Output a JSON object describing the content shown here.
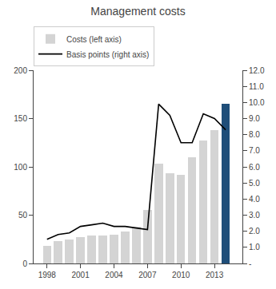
{
  "chart_data": {
    "type": "bar",
    "title": "Management costs",
    "x": [
      1998,
      1999,
      2000,
      2001,
      2002,
      2003,
      2004,
      2005,
      2006,
      2007,
      2008,
      2009,
      2010,
      2011,
      2012,
      2013,
      2014
    ],
    "xlim": [
      1996.8,
      2015.5
    ],
    "xticks": [
      1998,
      2001,
      2004,
      2007,
      2010,
      2013
    ],
    "ylim": [
      0,
      200
    ],
    "yticks": [
      0,
      50,
      100,
      150,
      200
    ],
    "y2lim": [
      0,
      12.0
    ],
    "y2ticks": [
      {
        "value": 0,
        "label": "-"
      },
      {
        "value": 1.0,
        "label": "1.0"
      },
      {
        "value": 2.0,
        "label": "2.0"
      },
      {
        "value": 3.0,
        "label": "3.0"
      },
      {
        "value": 4.0,
        "label": "4.0"
      },
      {
        "value": 5.0,
        "label": "5.0"
      },
      {
        "value": 6.0,
        "label": "6.0"
      },
      {
        "value": 7.0,
        "label": "7.0"
      },
      {
        "value": 8.0,
        "label": "8.0"
      },
      {
        "value": 9.0,
        "label": "9.0"
      },
      {
        "value": 10.0,
        "label": "10.0"
      },
      {
        "value": 11.0,
        "label": "11.0"
      },
      {
        "value": 12.0,
        "label": "12.0"
      }
    ],
    "grid": false,
    "legend": "upper left",
    "series": [
      {
        "name": "Costs (left axis)",
        "type": "bar",
        "colors": [
          "#d4d4d4",
          "#d4d4d4",
          "#d4d4d4",
          "#d4d4d4",
          "#d4d4d4",
          "#d4d4d4",
          "#d4d4d4",
          "#d4d4d4",
          "#d4d4d4",
          "#d4d4d4",
          "#d4d4d4",
          "#d4d4d4",
          "#d4d4d4",
          "#d4d4d4",
          "#d4d4d4",
          "#d4d4d4",
          "#1f4e79"
        ],
        "values": [
          18,
          23,
          25,
          27,
          29,
          29,
          30,
          33,
          38,
          55,
          103,
          93,
          92,
          110,
          127,
          138,
          165
        ]
      },
      {
        "name": "Basis points (right axis)",
        "type": "line",
        "axis": "y2",
        "color": "#000000",
        "values": [
          1.5,
          1.8,
          1.9,
          2.3,
          2.4,
          2.5,
          2.3,
          2.3,
          2.2,
          2.1,
          9.9,
          9.2,
          7.5,
          7.5,
          9.3,
          9.0,
          8.3
        ]
      }
    ]
  }
}
